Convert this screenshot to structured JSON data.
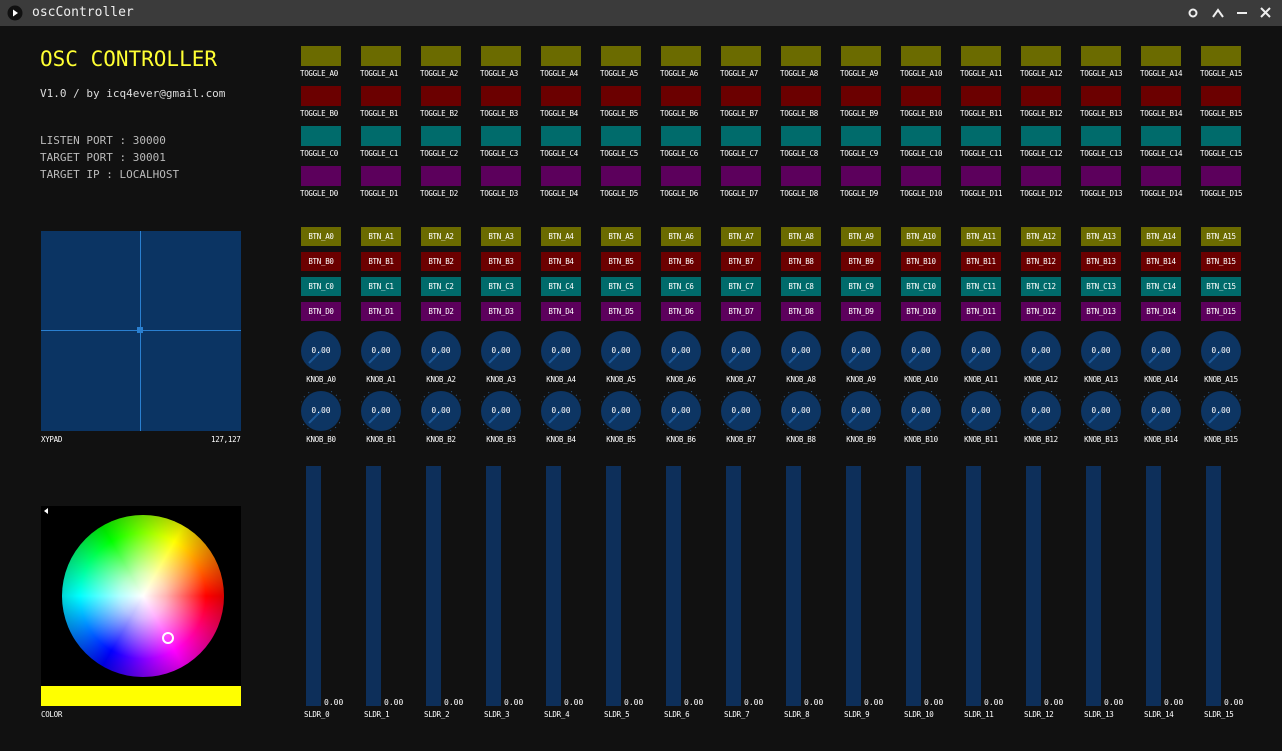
{
  "window": {
    "title": "oscController"
  },
  "header": {
    "title": "OSC CONTROLLER",
    "subtitle": "V1.0 / by icq4ever@gmail.com",
    "info": [
      "LISTEN PORT : 30000",
      "TARGET PORT : 30001",
      "TARGET IP : LOCALHOST"
    ]
  },
  "xypad": {
    "label": "XYPAD",
    "value": "127,127"
  },
  "color_picker": {
    "label": "COLOR",
    "color": "#ffff00"
  },
  "toggles": [
    {
      "color": "#6b6b00",
      "labels": [
        "TOGGLE_A0",
        "TOGGLE_A1",
        "TOGGLE_A2",
        "TOGGLE_A3",
        "TOGGLE_A4",
        "TOGGLE_A5",
        "TOGGLE_A6",
        "TOGGLE_A7",
        "TOGGLE_A8",
        "TOGGLE_A9",
        "TOGGLE_A10",
        "TOGGLE_A11",
        "TOGGLE_A12",
        "TOGGLE_A13",
        "TOGGLE_A14",
        "TOGGLE_A15"
      ]
    },
    {
      "color": "#6b0000",
      "labels": [
        "TOGGLE_B0",
        "TOGGLE_B1",
        "TOGGLE_B2",
        "TOGGLE_B3",
        "TOGGLE_B4",
        "TOGGLE_B5",
        "TOGGLE_B6",
        "TOGGLE_B7",
        "TOGGLE_B8",
        "TOGGLE_B9",
        "TOGGLE_B10",
        "TOGGLE_B11",
        "TOGGLE_B12",
        "TOGGLE_B13",
        "TOGGLE_B14",
        "TOGGLE_B15"
      ]
    },
    {
      "color": "#006b6b",
      "labels": [
        "TOGGLE_C0",
        "TOGGLE_C1",
        "TOGGLE_C2",
        "TOGGLE_C3",
        "TOGGLE_C4",
        "TOGGLE_C5",
        "TOGGLE_C6",
        "TOGGLE_C7",
        "TOGGLE_C8",
        "TOGGLE_C9",
        "TOGGLE_C10",
        "TOGGLE_C11",
        "TOGGLE_C12",
        "TOGGLE_C13",
        "TOGGLE_C14",
        "TOGGLE_C15"
      ]
    },
    {
      "color": "#5c005c",
      "labels": [
        "TOGGLE_D0",
        "TOGGLE_D1",
        "TOGGLE_D2",
        "TOGGLE_D3",
        "TOGGLE_D4",
        "TOGGLE_D5",
        "TOGGLE_D6",
        "TOGGLE_D7",
        "TOGGLE_D8",
        "TOGGLE_D9",
        "TOGGLE_D10",
        "TOGGLE_D11",
        "TOGGLE_D12",
        "TOGGLE_D13",
        "TOGGLE_D14",
        "TOGGLE_D15"
      ]
    }
  ],
  "buttons": [
    {
      "color": "#6b6b00",
      "labels": [
        "BTN_A0",
        "BTN_A1",
        "BTN_A2",
        "BTN_A3",
        "BTN_A4",
        "BTN_A5",
        "BTN_A6",
        "BTN_A7",
        "BTN_A8",
        "BTN_A9",
        "BTN_A10",
        "BTN_A11",
        "BTN_A12",
        "BTN_A13",
        "BTN_A14",
        "BTN_A15"
      ]
    },
    {
      "color": "#6b0000",
      "labels": [
        "BTN_B0",
        "BTN_B1",
        "BTN_B2",
        "BTN_B3",
        "BTN_B4",
        "BTN_B5",
        "BTN_B6",
        "BTN_B7",
        "BTN_B8",
        "BTN_B9",
        "BTN_B10",
        "BTN_B11",
        "BTN_B12",
        "BTN_B13",
        "BTN_B14",
        "BTN_B15"
      ]
    },
    {
      "color": "#006b6b",
      "labels": [
        "BTN_C0",
        "BTN_C1",
        "BTN_C2",
        "BTN_C3",
        "BTN_C4",
        "BTN_C5",
        "BTN_C6",
        "BTN_C7",
        "BTN_C8",
        "BTN_C9",
        "BTN_C10",
        "BTN_C11",
        "BTN_C12",
        "BTN_C13",
        "BTN_C14",
        "BTN_C15"
      ]
    },
    {
      "color": "#5c005c",
      "labels": [
        "BTN_D0",
        "BTN_D1",
        "BTN_D2",
        "BTN_D3",
        "BTN_D4",
        "BTN_D5",
        "BTN_D6",
        "BTN_D7",
        "BTN_D8",
        "BTN_D9",
        "BTN_D10",
        "BTN_D11",
        "BTN_D12",
        "BTN_D13",
        "BTN_D14",
        "BTN_D15"
      ]
    }
  ],
  "knobs": [
    {
      "labels": [
        "KNOB_A0",
        "KNOB_A1",
        "KNOB_A2",
        "KNOB_A3",
        "KNOB_A4",
        "KNOB_A5",
        "KNOB_A6",
        "KNOB_A7",
        "KNOB_A8",
        "KNOB_A9",
        "KNOB_A10",
        "KNOB_A11",
        "KNOB_A12",
        "KNOB_A13",
        "KNOB_A14",
        "KNOB_A15"
      ],
      "values": [
        "0.00",
        "0.00",
        "0.00",
        "0.00",
        "0.00",
        "0.00",
        "0.00",
        "0.00",
        "0.00",
        "0.00",
        "0.00",
        "0.00",
        "0.00",
        "0.00",
        "0.00",
        "0.00"
      ]
    },
    {
      "labels": [
        "KNOB_B0",
        "KNOB_B1",
        "KNOB_B2",
        "KNOB_B3",
        "KNOB_B4",
        "KNOB_B5",
        "KNOB_B6",
        "KNOB_B7",
        "KNOB_B8",
        "KNOB_B9",
        "KNOB_B10",
        "KNOB_B11",
        "KNOB_B12",
        "KNOB_B13",
        "KNOB_B14",
        "KNOB_B15"
      ],
      "values": [
        "0.00",
        "0.00",
        "0.00",
        "0.00",
        "0.00",
        "0.00",
        "0.00",
        "0.00",
        "0.00",
        "0.00",
        "0.00",
        "0.00",
        "0.00",
        "0.00",
        "0.00",
        "0.00"
      ]
    }
  ],
  "sliders": {
    "labels": [
      "SLDR_0",
      "SLDR_1",
      "SLDR_2",
      "SLDR_3",
      "SLDR_4",
      "SLDR_5",
      "SLDR_6",
      "SLDR_7",
      "SLDR_8",
      "SLDR_9",
      "SLDR_10",
      "SLDR_11",
      "SLDR_12",
      "SLDR_13",
      "SLDR_14",
      "SLDR_15"
    ],
    "values": [
      "0.00",
      "0.00",
      "0.00",
      "0.00",
      "0.00",
      "0.00",
      "0.00",
      "0.00",
      "0.00",
      "0.00",
      "0.00",
      "0.00",
      "0.00",
      "0.00",
      "0.00",
      "0.00"
    ]
  }
}
